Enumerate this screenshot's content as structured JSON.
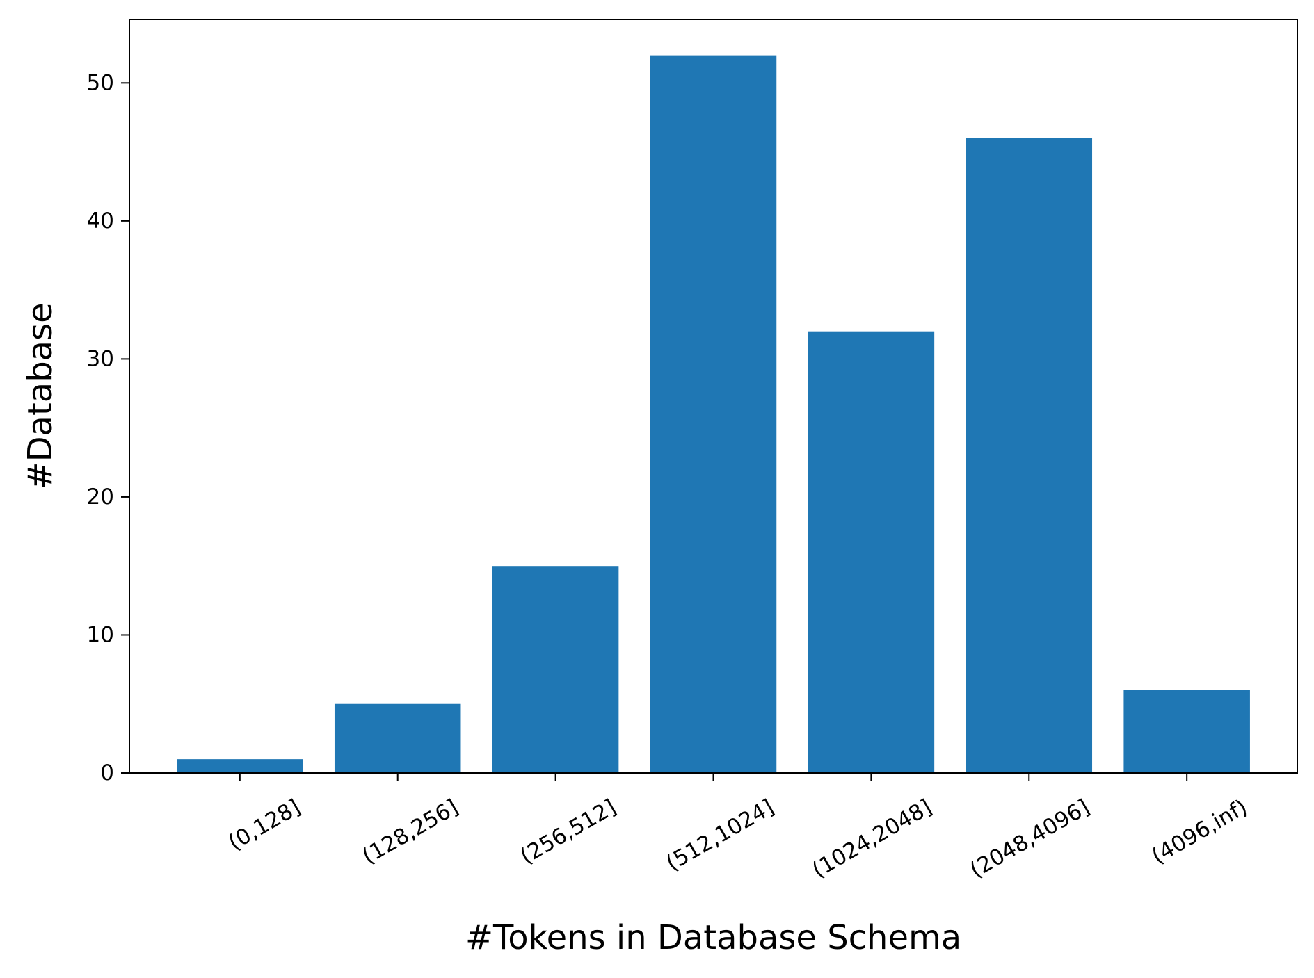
{
  "chart_data": {
    "type": "bar",
    "title": "",
    "xlabel": "#Tokens in Database Schema",
    "ylabel": "#Database",
    "categories": [
      "(0,128]",
      "(128,256]",
      "(256,512]",
      "(512,1024]",
      "(1024,2048]",
      "(2048,4096]",
      "(4096,inf)"
    ],
    "values": [
      1,
      5,
      15,
      52,
      32,
      46,
      6
    ],
    "ylim": [
      0,
      54.6
    ],
    "yticks": [
      0,
      10,
      20,
      30,
      40,
      50
    ],
    "bar_color": "#1f77b4",
    "grid": false,
    "legend": "none"
  }
}
